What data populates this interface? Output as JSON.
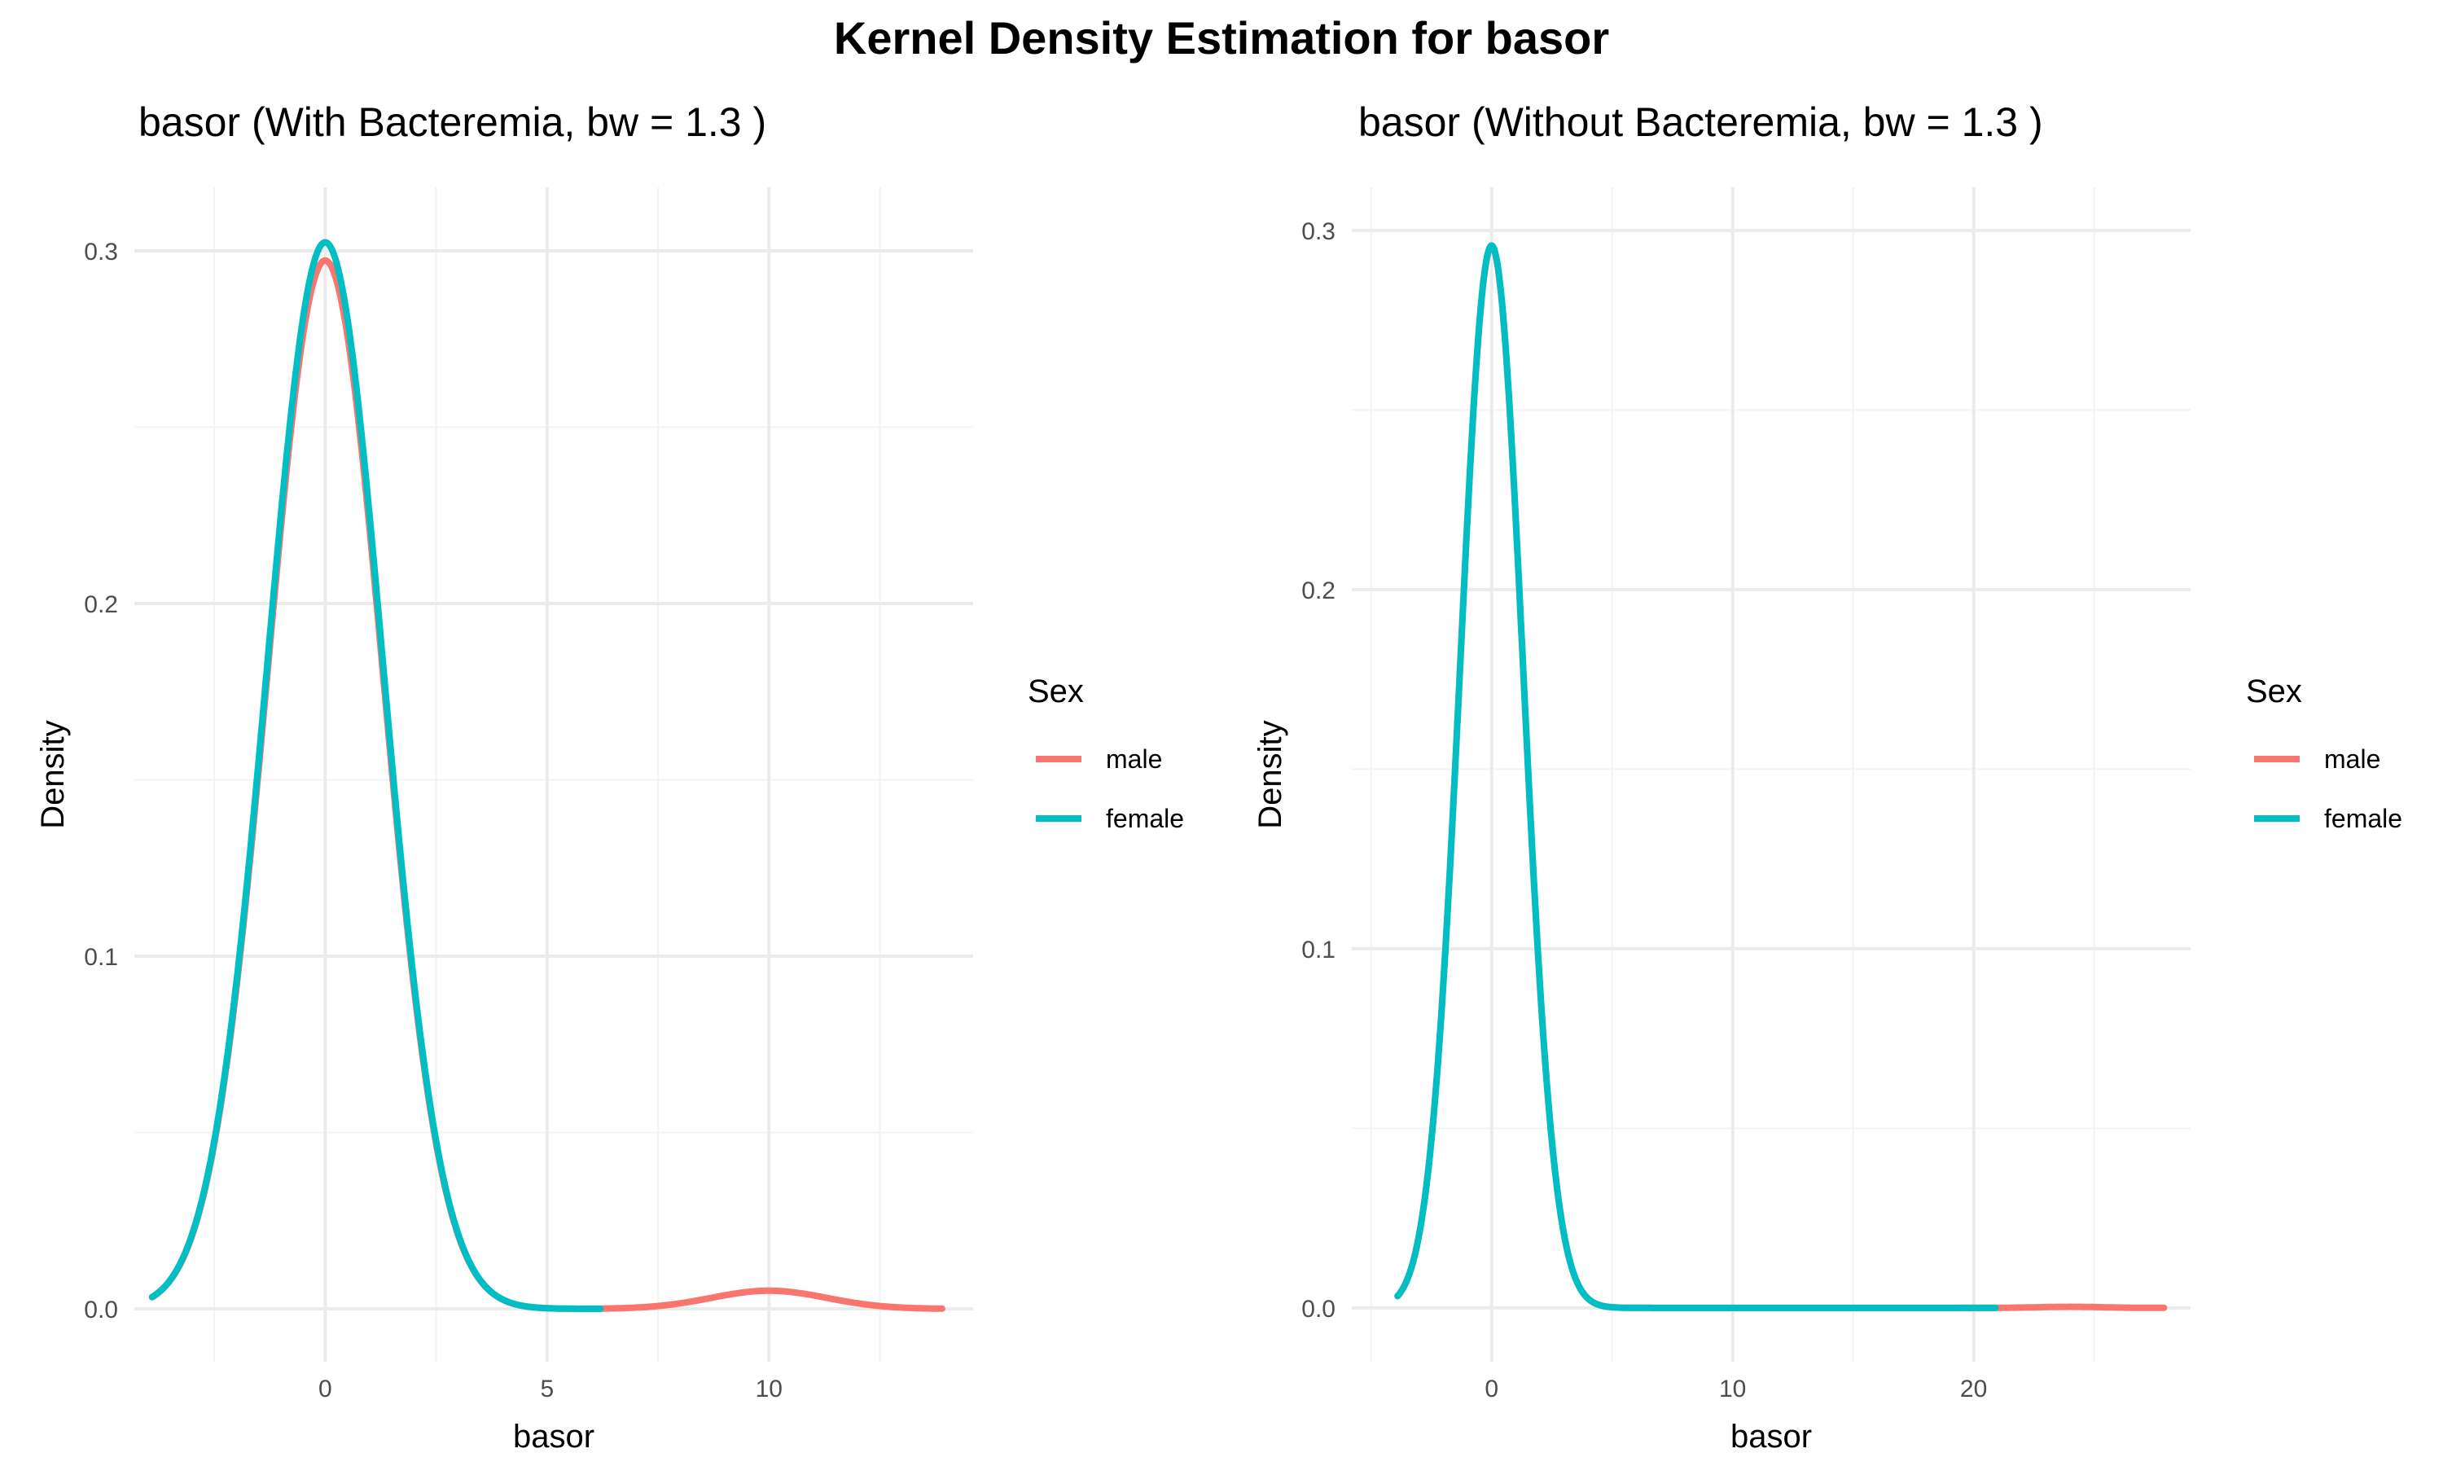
{
  "figure": {
    "title": "Kernel Density Estimation for basor"
  },
  "colors": {
    "male": "#F8766D",
    "female": "#00BFC4"
  },
  "chart_data": [
    {
      "type": "line",
      "title": "basor (With Bacteremia, bw = 1.3 )",
      "xlabel": "basor",
      "ylabel": "Density",
      "xlim": [
        -4.3,
        14.6
      ],
      "ylim": [
        -0.015,
        0.318
      ],
      "x_ticks": [
        0,
        5,
        10
      ],
      "x_tick_labels": [
        "0",
        "5",
        "10"
      ],
      "y_ticks": [
        0.0,
        0.1,
        0.2,
        0.3
      ],
      "y_tick_labels": [
        "0.0",
        "0.1",
        "0.2",
        "0.3"
      ],
      "grid": true,
      "legend": {
        "title": "Sex",
        "position": "right",
        "entries": [
          "male",
          "female"
        ]
      },
      "series": [
        {
          "name": "male",
          "kde": {
            "centers": [
              0,
              10
            ],
            "weights": [
              0.983,
              0.017
            ],
            "sd": 1.3,
            "scale": 0.3024
          },
          "x_range": [
            -3.9,
            13.9
          ]
        },
        {
          "name": "female",
          "kde": {
            "centers": [
              0
            ],
            "weights": [
              1
            ],
            "sd": 1.3,
            "scale": 0.3024
          },
          "x_range": [
            -3.9,
            6.2
          ]
        }
      ]
    },
    {
      "type": "line",
      "title": "basor (Without Bacteremia, bw = 1.3 )",
      "xlabel": "basor",
      "ylabel": "Density",
      "xlim": [
        -5.8,
        29.0
      ],
      "ylim": [
        -0.015,
        0.312
      ],
      "x_ticks": [
        0,
        10,
        20
      ],
      "x_tick_labels": [
        "0",
        "10",
        "20"
      ],
      "y_ticks": [
        0.0,
        0.1,
        0.2,
        0.3
      ],
      "y_tick_labels": [
        "0.0",
        "0.1",
        "0.2",
        "0.3"
      ],
      "grid": true,
      "legend": {
        "title": "Sex",
        "position": "right",
        "entries": [
          "male",
          "female"
        ]
      },
      "series": [
        {
          "name": "male",
          "kde": {
            "centers": [
              0,
              24
            ],
            "weights": [
              0.999,
              0.001
            ],
            "sd": 1.3,
            "scale": 0.2958
          },
          "x_range": [
            -3.9,
            27.9
          ]
        },
        {
          "name": "female",
          "kde": {
            "centers": [
              0
            ],
            "weights": [
              1
            ],
            "sd": 1.3,
            "scale": 0.2958
          },
          "x_range": [
            -3.9,
            20.9
          ]
        }
      ]
    }
  ]
}
